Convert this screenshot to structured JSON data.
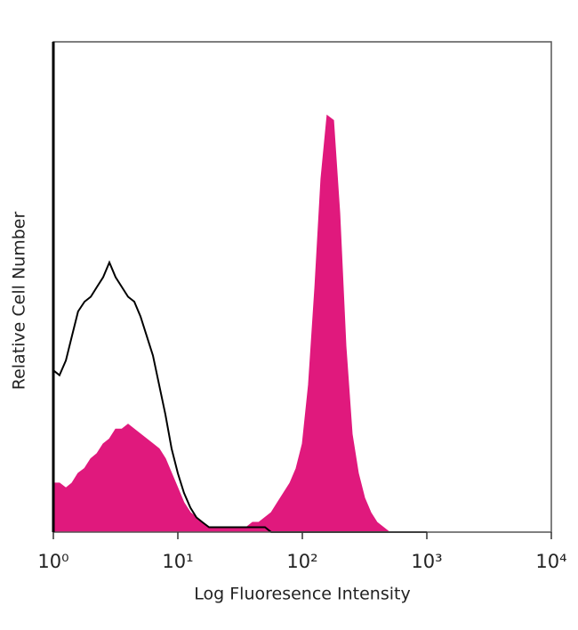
{
  "chart_data": {
    "type": "histogram-overlay",
    "xlabel": "Log Fluoresence Intensity",
    "ylabel": "Relative Cell Number",
    "xscale": "log",
    "xlim": [
      1,
      10000
    ],
    "xticks": [
      {
        "value": 1,
        "label": "10⁰"
      },
      {
        "value": 10,
        "label": "10¹"
      },
      {
        "value": 100,
        "label": "10²"
      },
      {
        "value": 1000,
        "label": "10³"
      },
      {
        "value": 10000,
        "label": "10⁴"
      }
    ],
    "ylim": [
      0,
      100
    ],
    "x": [
      1,
      1.12,
      1.26,
      1.41,
      1.58,
      1.78,
      2,
      2.24,
      2.51,
      2.82,
      3.16,
      3.55,
      3.98,
      4.47,
      5.01,
      5.62,
      6.31,
      7.08,
      7.94,
      8.91,
      10,
      11.2,
      12.6,
      14.1,
      15.8,
      17.8,
      20,
      22.4,
      25.1,
      28.2,
      31.6,
      35.5,
      39.8,
      44.7,
      50.1,
      56.2,
      63.1,
      70.8,
      79.4,
      89.1,
      100,
      112,
      126,
      141,
      158,
      178,
      200,
      224,
      251,
      282,
      316,
      355,
      398,
      447,
      501,
      562,
      631,
      708,
      794,
      891,
      1000
    ],
    "series": [
      {
        "color": "#e0197d",
        "fill": true,
        "values": [
          10,
          10,
          9,
          10,
          12,
          13,
          15,
          16,
          18,
          19,
          21,
          21,
          22,
          21,
          20,
          19,
          18,
          17,
          15,
          12,
          9,
          6,
          4,
          3,
          2,
          1,
          1,
          1,
          1,
          1,
          1,
          1,
          2,
          2,
          3,
          4,
          6,
          8,
          10,
          13,
          18,
          30,
          50,
          72,
          85,
          84,
          65,
          38,
          20,
          12,
          7,
          4,
          2,
          1,
          0,
          0,
          0,
          0,
          0,
          0,
          0
        ]
      },
      {
        "color": "#000000",
        "fill": false,
        "values": [
          33,
          32,
          35,
          40,
          45,
          47,
          48,
          50,
          52,
          55,
          52,
          50,
          48,
          47,
          44,
          40,
          36,
          30,
          24,
          17,
          12,
          8,
          5,
          3,
          2,
          1,
          1,
          1,
          1,
          1,
          1,
          1,
          1,
          1,
          1,
          0,
          0,
          0,
          0,
          0,
          0,
          0,
          0,
          0,
          0,
          0,
          0,
          0,
          0,
          0,
          0,
          0,
          0,
          0,
          0,
          0,
          0,
          0,
          0,
          0,
          0
        ]
      }
    ]
  }
}
